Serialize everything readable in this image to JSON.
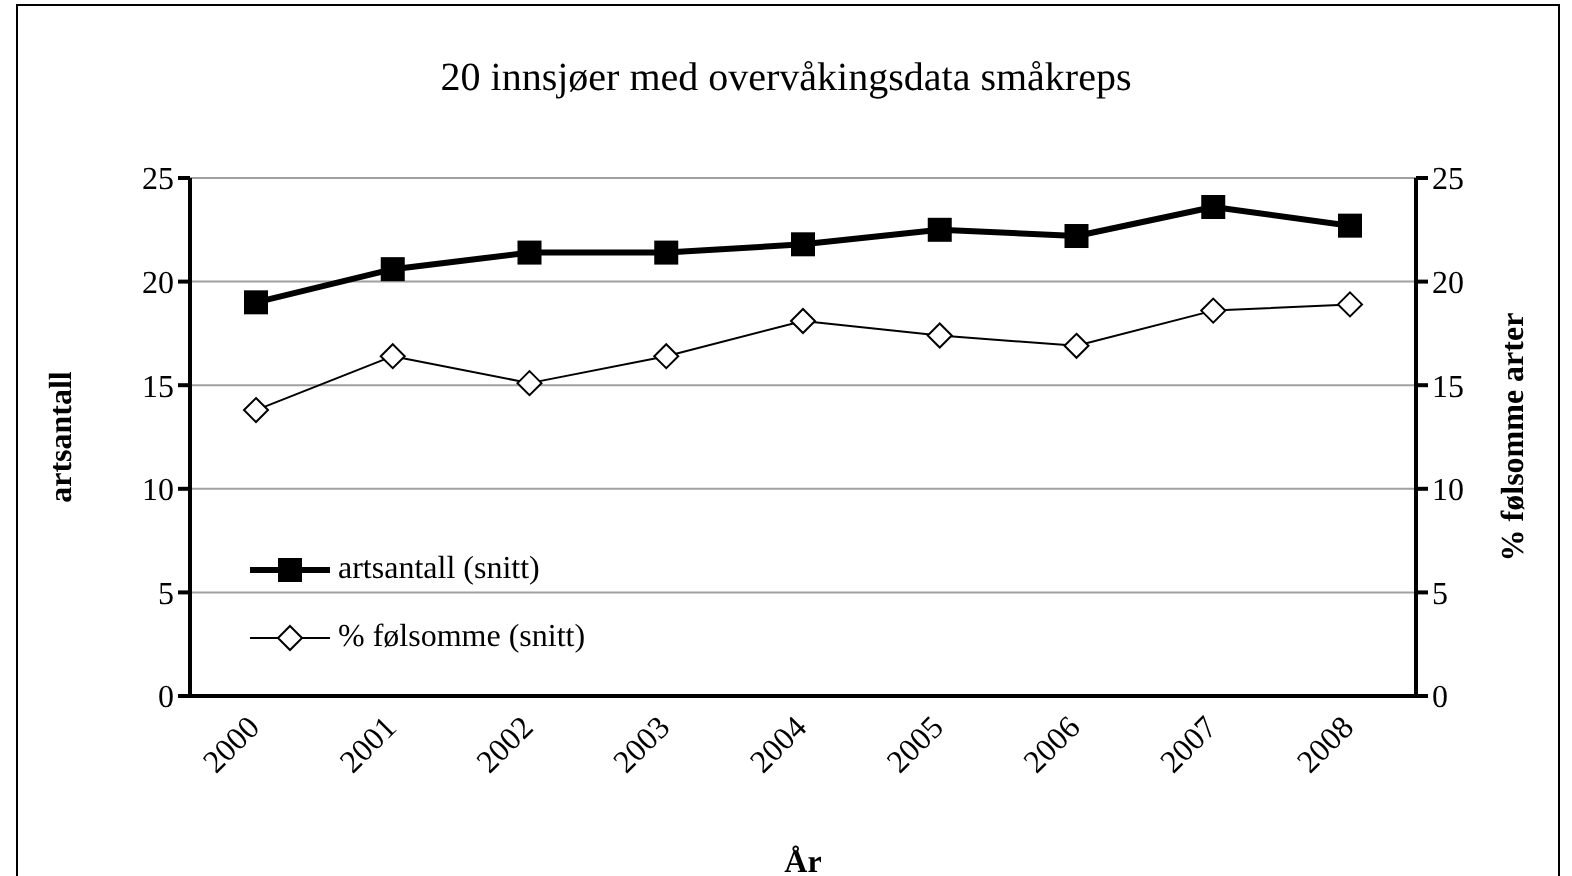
{
  "chart_data": {
    "type": "line",
    "title": "20 innsjøer med overvåkingsdata småkreps",
    "xlabel": "År",
    "ylabel": "artsantall",
    "y2label": "% følsomme arter",
    "categories": [
      "2000",
      "2001",
      "2002",
      "2003",
      "2004",
      "2005",
      "2006",
      "2007",
      "2008"
    ],
    "series": [
      {
        "name": "artsantall (snitt)",
        "color": "#000000",
        "marker": "square",
        "values": [
          19.0,
          20.6,
          21.4,
          21.4,
          21.8,
          22.5,
          22.2,
          23.6,
          22.7
        ]
      },
      {
        "name": "% følsomme (snitt)",
        "color": "#000000",
        "marker": "diamond",
        "axis": "y2",
        "values": [
          13.8,
          16.4,
          15.1,
          16.4,
          18.1,
          17.4,
          16.9,
          18.6,
          18.9
        ]
      }
    ],
    "ylim": [
      0,
      25
    ],
    "yticks": [
      0,
      5,
      10,
      15,
      20,
      25
    ],
    "y2lim": [
      0,
      25
    ],
    "y2ticks": [
      0,
      5,
      10,
      15,
      20,
      25
    ],
    "grid": "y",
    "legend": "left",
    "line_style": "solid"
  }
}
